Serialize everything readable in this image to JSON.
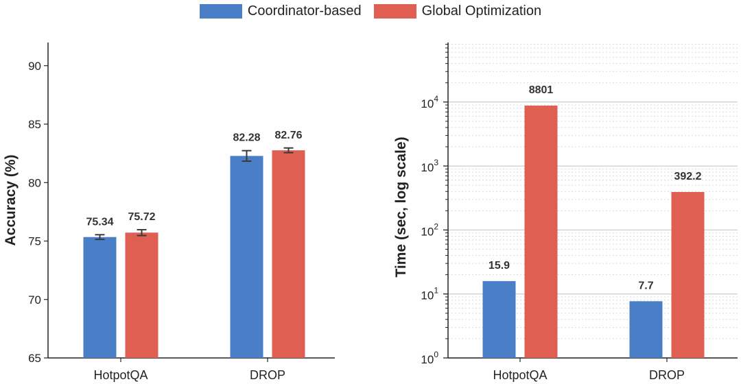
{
  "legend": {
    "items": [
      {
        "label": "Coordinator-based",
        "color": "#4a7fc8"
      },
      {
        "label": "Global Optimization",
        "color": "#df5f52"
      }
    ]
  },
  "chart_data": [
    {
      "type": "bar",
      "title": "",
      "xlabel": "",
      "ylabel": "Accuracy (%)",
      "categories": [
        "HotpotQA",
        "DROP"
      ],
      "ylim": [
        65,
        92
      ],
      "yticks": [
        65,
        70,
        75,
        80,
        85,
        90
      ],
      "grid": false,
      "series": [
        {
          "name": "Coordinator-based",
          "color": "#4a7fc8",
          "values": [
            75.34,
            82.28
          ],
          "errors": [
            0.2,
            0.45
          ],
          "labels": [
            "75.34",
            "82.28"
          ]
        },
        {
          "name": "Global Optimization",
          "color": "#df5f52",
          "values": [
            75.72,
            82.76
          ],
          "errors": [
            0.25,
            0.2
          ],
          "labels": [
            "75.72",
            "82.76"
          ]
        }
      ]
    },
    {
      "type": "bar",
      "title": "",
      "xlabel": "",
      "ylabel": "Time (sec, log scale)",
      "yscale": "log",
      "categories": [
        "HotpotQA",
        "DROP"
      ],
      "ylim": [
        1,
        100000
      ],
      "yticks": [
        {
          "base": "10",
          "exp": "0"
        },
        {
          "base": "10",
          "exp": "1"
        },
        {
          "base": "10",
          "exp": "2"
        },
        {
          "base": "10",
          "exp": "3"
        },
        {
          "base": "10",
          "exp": "4"
        }
      ],
      "grid": true,
      "series": [
        {
          "name": "Coordinator-based",
          "color": "#4a7fc8",
          "values": [
            15.9,
            7.7
          ],
          "labels": [
            "15.9",
            "7.7"
          ]
        },
        {
          "name": "Global Optimization",
          "color": "#df5f52",
          "values": [
            8801,
            392.2
          ],
          "labels": [
            "8801",
            "392.2"
          ]
        }
      ]
    }
  ]
}
